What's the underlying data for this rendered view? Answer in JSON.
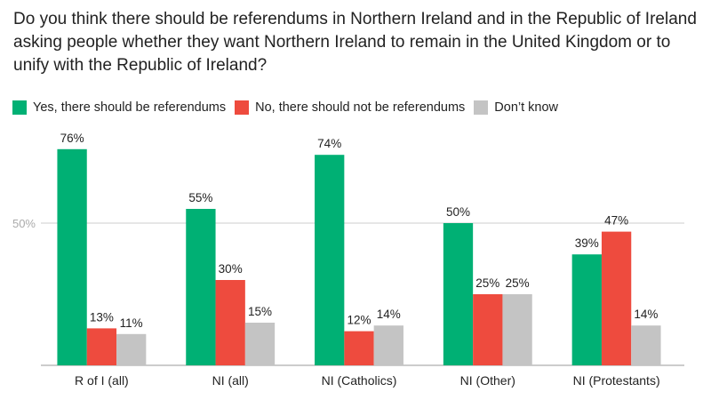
{
  "chart_data": {
    "type": "bar",
    "title": "Do you think there should be referendums in Northern Ireland and in the Republic of Ireland asking people whether they want Northern Ireland to remain in the United Kingdom or to unify with the Republic of Ireland?",
    "categories": [
      "R of I (all)",
      "NI (all)",
      "NI (Catholics)",
      "NI (Other)",
      "NI (Protestants)"
    ],
    "series": [
      {
        "name": "Yes, there should be referendums",
        "color": "#00b074",
        "values": [
          76,
          55,
          74,
          50,
          39
        ]
      },
      {
        "name": "No, there should not be referendums",
        "color": "#ee4b3e",
        "values": [
          13,
          30,
          12,
          25,
          47
        ]
      },
      {
        "name": "Don’t know",
        "color": "#c4c4c4",
        "values": [
          11,
          15,
          14,
          25,
          14
        ]
      }
    ],
    "yticks": [
      {
        "value": 50,
        "label": "50%"
      }
    ],
    "ylim": [
      0,
      100
    ],
    "value_suffix": "%",
    "legend_position": "top-left",
    "grid": true
  }
}
